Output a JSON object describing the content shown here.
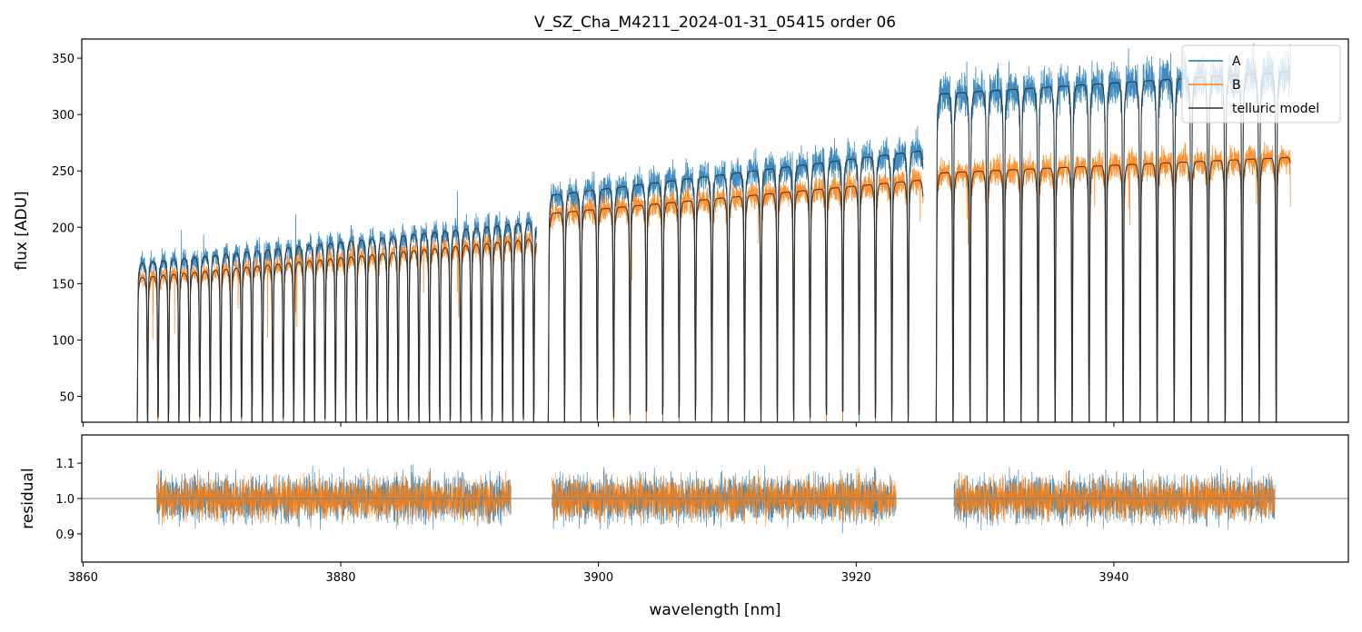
{
  "figure_title": "V_SZ_Cha_M4211_2024-01-31_05415  order 06",
  "colors": {
    "A": "#1f77b4",
    "B": "#ff7f0e",
    "model": "#2b2b2b",
    "axis": "#000000",
    "refline": "#7f7f7f"
  },
  "chart_data": [
    {
      "id": "flux",
      "type": "line",
      "title": "V_SZ_Cha_M4211_2024-01-31_05415  order 06",
      "xlabel": "",
      "ylabel": "flux [ADU]",
      "xlim": [
        3859.9,
        3958.2
      ],
      "ylim": [
        27,
        367
      ],
      "xticks": [
        3860,
        3880,
        3900,
        3920,
        3940
      ],
      "yticks": [
        50,
        100,
        150,
        200,
        250,
        300,
        350
      ],
      "ytick_labels": [
        "50",
        "100",
        "150",
        "200",
        "250",
        "300",
        "350"
      ],
      "grid": false,
      "legend": {
        "placement": "top-right",
        "entries": [
          "A",
          "B",
          "telluric model"
        ]
      },
      "segments": [
        {
          "x": [
            3864.2,
            3895.2
          ],
          "A_continuum": [
            168,
            205
          ],
          "B_continuum": [
            155,
            190
          ],
          "line_spacing_nm": 0.81,
          "line_depth_min_flux": 35
        },
        {
          "x": [
            3896.1,
            3925.2
          ],
          "A_continuum": [
            228,
            268
          ],
          "B_continuum": [
            212,
            242
          ],
          "line_spacing_nm": 1.27,
          "line_depth_min_flux": 40
        },
        {
          "x": [
            3926.2,
            3953.7
          ],
          "A_continuum": [
            318,
            338
          ],
          "B_continuum": [
            248,
            262
          ],
          "line_spacing_nm": 1.32,
          "line_depth_min_flux": 30
        }
      ],
      "series": [
        {
          "name": "A",
          "description": "observed flux, nod position A"
        },
        {
          "name": "B",
          "description": "observed flux, nod position B"
        },
        {
          "name": "telluric model",
          "description": "telluric model fit"
        }
      ]
    },
    {
      "id": "residual",
      "type": "line",
      "title": "",
      "xlabel": "wavelength [nm]",
      "ylabel": "residual",
      "xlim": [
        3859.9,
        3958.2
      ],
      "ylim": [
        0.82,
        1.18
      ],
      "xticks": [
        3860,
        3880,
        3900,
        3920,
        3940
      ],
      "xtick_labels": [
        "3860",
        "3880",
        "3900",
        "3920",
        "3940"
      ],
      "yticks": [
        0.9,
        1.0,
        1.1
      ],
      "ytick_labels": [
        "0.9",
        "1.0",
        "1.1"
      ],
      "reference_line": 1.0,
      "segments": [
        {
          "x": [
            3865.7,
            3893.2
          ]
        },
        {
          "x": [
            3896.4,
            3923.1
          ]
        },
        {
          "x": [
            3927.6,
            3952.5
          ]
        }
      ],
      "noise_sigma": {
        "A": 0.05,
        "B": 0.045
      }
    }
  ]
}
